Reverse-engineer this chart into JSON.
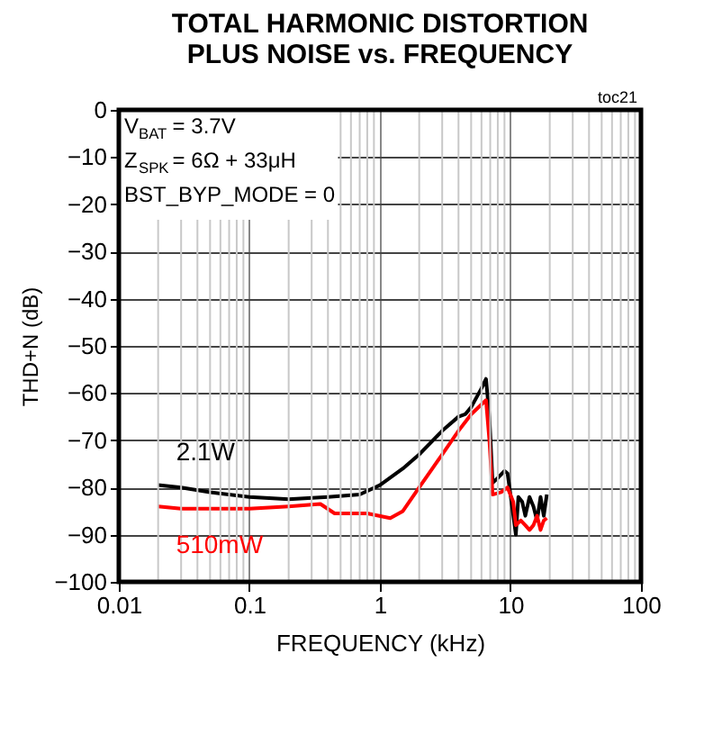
{
  "chart_data": {
    "type": "line",
    "title": "TOTAL HARMONIC DISTORTION\nPLUS NOISE vs. FREQUENCY",
    "xlabel": "FREQUENCY (kHz)",
    "ylabel": "THD+N (dB)",
    "log": "x",
    "xlim": [
      0.01,
      100
    ],
    "xticks": [
      0.01,
      0.1,
      1,
      10,
      100
    ],
    "ylim": [
      -100,
      0
    ],
    "yticks": [
      -100,
      -90,
      -80,
      -70,
      -60,
      -50,
      -40,
      -30,
      -20,
      -10,
      0
    ],
    "grid": true,
    "legend": false,
    "line_style": "solid",
    "marker": "none",
    "annotations": [
      "V$_{BAT}$ = 3.7V",
      "Z$_{SPK}$ = 6Ω + 33μH",
      "BST_BYP_MODE = 0",
      "toc21"
    ],
    "series": [
      {
        "name": "2.1W",
        "color": "#000000",
        "x": [
          0.02,
          0.03,
          0.05,
          0.1,
          0.2,
          0.4,
          0.7,
          1,
          1.5,
          2,
          3,
          4,
          4.5,
          5,
          6,
          6.5,
          6.9,
          7.3,
          8,
          9,
          9.5,
          10.3,
          11,
          11.5,
          12.3,
          13,
          14,
          15,
          16,
          17,
          18,
          19
        ],
        "values": [
          -79.5,
          -80,
          -81,
          -82,
          -82.5,
          -82,
          -81.5,
          -79.5,
          -76,
          -73,
          -68,
          -65,
          -64.5,
          -63,
          -59,
          -57,
          -65,
          -79,
          -78,
          -76.5,
          -77,
          -84,
          -90,
          -82,
          -83,
          -86,
          -82,
          -84,
          -87,
          -82,
          -86,
          -81.5
        ]
      },
      {
        "name": "510mW",
        "color": "#ff0000",
        "x": [
          0.02,
          0.03,
          0.05,
          0.1,
          0.2,
          0.35,
          0.45,
          0.8,
          1.2,
          1.5,
          2,
          3,
          4,
          5,
          6.5,
          6.9,
          7.3,
          8.5,
          9.5,
          10.5,
          11,
          12,
          13,
          14,
          15,
          16,
          17,
          18,
          19
        ],
        "values": [
          -84,
          -84.5,
          -84.5,
          -84.5,
          -84,
          -83.5,
          -85.5,
          -85.5,
          -86.5,
          -85,
          -80,
          -73,
          -68,
          -64.5,
          -61.5,
          -70,
          -81.5,
          -81,
          -80,
          -83,
          -88,
          -87,
          -88,
          -89,
          -88,
          -86,
          -89,
          -87,
          -86.5
        ]
      }
    ]
  }
}
